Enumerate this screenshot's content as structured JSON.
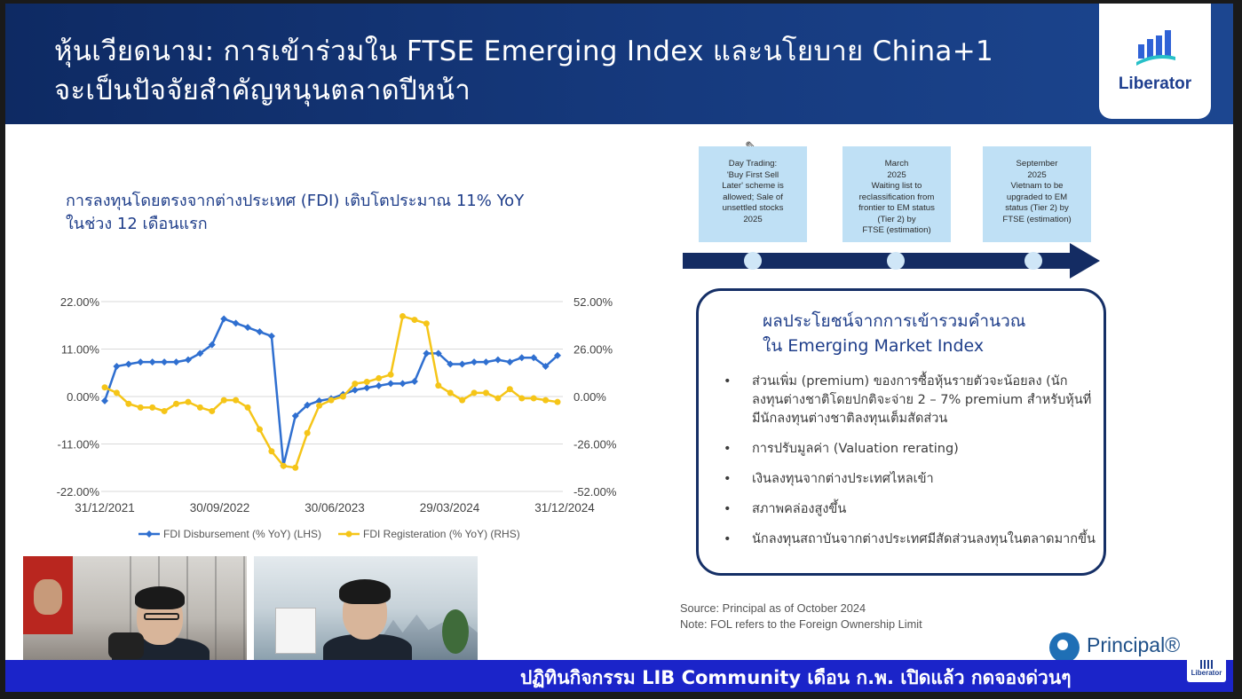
{
  "header": {
    "title_line1": "หุ้นเวียดนาม: การเข้าร่วมใน FTSE Emerging Index และนโยบาย China+1",
    "title_line2": "จะเป็นปัจจัยสำคัญหนุนตลาดปีหน้า",
    "logo_text": "Liberator"
  },
  "chart": {
    "heading_line1": "การลงทุนโดยตรงจากต่างประเทศ (FDI) เติบโตประมาณ 11% YoY",
    "heading_line2": "ในช่วง 12 เดือนแรก"
  },
  "chart_data": {
    "type": "line",
    "title": "",
    "x_tick_labels": [
      "31/12/2021",
      "30/09/2022",
      "30/06/2023",
      "29/03/2024",
      "31/12/2024"
    ],
    "left_axis": {
      "ticks": [
        "22.00%",
        "11.00%",
        "0.00%",
        "-11.00%",
        "-22.00%"
      ],
      "ylim": [
        -22,
        22
      ]
    },
    "right_axis": {
      "ticks": [
        "52.00%",
        "26.00%",
        "0.00%",
        "-26.00%",
        "-52.00%"
      ],
      "ylim": [
        -52,
        52
      ]
    },
    "grid": true,
    "legend_position": "bottom",
    "series": [
      {
        "name": "FDI Disbursement (% YoY) (LHS)",
        "axis": "left",
        "color": "#2f6fd0",
        "values": [
          -1,
          7,
          7.5,
          8,
          8,
          8,
          8,
          8.5,
          10,
          12,
          18,
          17,
          16,
          15,
          14,
          -16,
          -4.5,
          -2,
          -1,
          -0.5,
          0.5,
          1.5,
          2,
          2.5,
          3,
          3,
          3.5,
          10,
          10,
          7.5,
          7.5,
          8,
          8,
          8.5,
          8,
          9,
          9,
          7,
          9.5
        ]
      },
      {
        "name": "FDI Registeration (% YoY) (RHS)",
        "axis": "right",
        "color": "#f5c518",
        "values": [
          5,
          2,
          -4,
          -6,
          -6,
          -8,
          -4,
          -3,
          -6,
          -8,
          -2,
          -2,
          -6,
          -18,
          -30,
          -38,
          -39,
          -20,
          -5,
          -2,
          0,
          7,
          8,
          10,
          12,
          44,
          42,
          40,
          6,
          2,
          -2,
          2,
          2,
          -1,
          4,
          -1,
          -1,
          -2,
          -3
        ]
      }
    ]
  },
  "timeline": [
    {
      "text": "Day Trading:\n'Buy First Sell\nLater' scheme is\nallowed; Sale of\nunsettled stocks\n2025"
    },
    {
      "text": "March\n2025\nWaiting list to\nreclassification from\nfrontier to EM status\n(Tier 2) by\nFTSE (estimation)"
    },
    {
      "text": "September\n2025\nVietnam to be\nupgraded to EM\nstatus (Tier 2) by\nFTSE (estimation)"
    }
  ],
  "benefits": {
    "title_line1": "ผลประโยชน์จากการเข้ารวมคำนวณ",
    "title_line2": "ใน Emerging Market Index",
    "items": [
      "ส่วนเพิ่ม (premium) ของการซื้อหุ้นรายตัวจะน้อยลง (นักลงทุนต่างชาติโดยปกติจะจ่าย 2 – 7% premium สำหรับหุ้นที่มีนักลงทุนต่างชาติลงทุนเต็มสัดส่วน",
      "การปรับมูลค่า (Valuation rerating)",
      "เงินลงทุนจากต่างประเทศไหลเข้า",
      "สภาพคล่องสูงขึ้น",
      "นักลงทุนสถาบันจากต่างประเทศมีสัดส่วนลงทุนในตลาดมากขึ้น"
    ]
  },
  "source": {
    "line1": "Source: Principal as of October 2024",
    "line2": "Note: FOL refers to the Foreign Ownership Limit"
  },
  "principal_logo": "Principal®",
  "ticker": "ปฏิทินกิจกรรม LIB Community เดือน ก.พ. เปิดแล้ว กดจองด่วนๆ",
  "mini_logo": "Liberator",
  "video_tile_marker": "1"
}
